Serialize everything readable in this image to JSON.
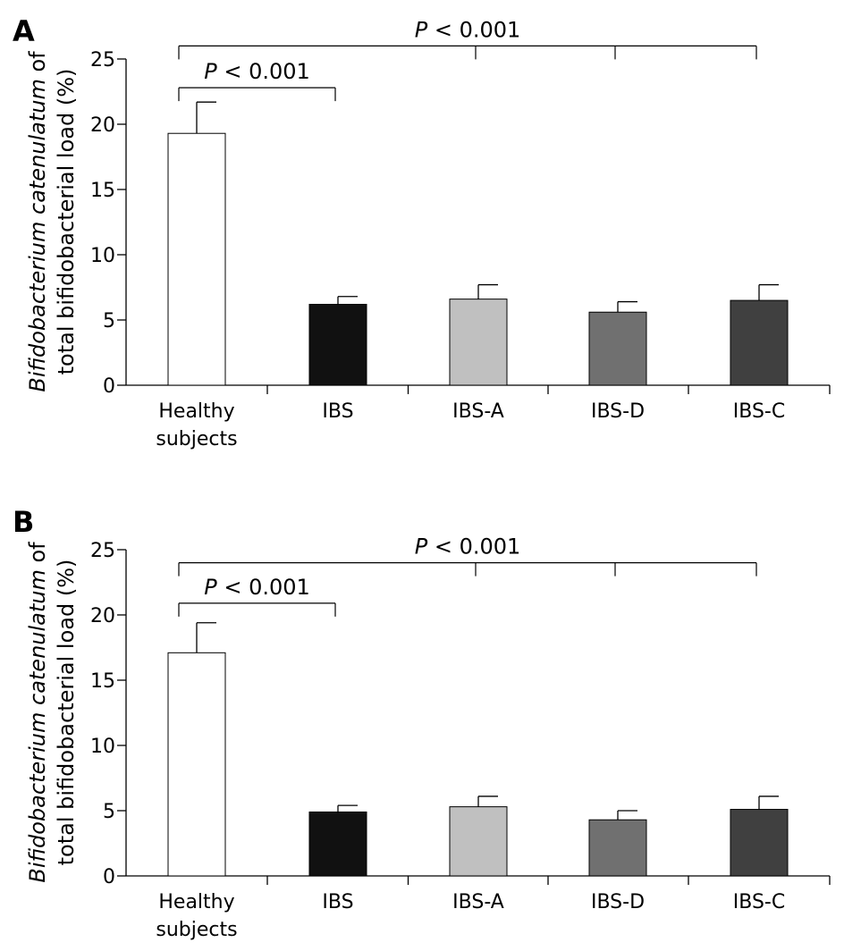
{
  "chart_data": [
    {
      "type": "bar",
      "panel": "A",
      "categories": [
        "Healthy subjects",
        "IBS",
        "IBS-A",
        "IBS-D",
        "IBS-C"
      ],
      "category_lines": [
        [
          "Healthy",
          "subjects"
        ],
        [
          "IBS"
        ],
        [
          "IBS-A"
        ],
        [
          "IBS-D"
        ],
        [
          "IBS-C"
        ]
      ],
      "values": [
        19.3,
        6.2,
        6.6,
        5.6,
        6.5
      ],
      "errors": [
        2.4,
        0.6,
        1.1,
        0.8,
        1.2
      ],
      "bar_colors": [
        "#ffffff",
        "#111111",
        "#c0c0c0",
        "#707070",
        "#404040"
      ],
      "ylabel_italic": "Bifidobacterium catenulatum",
      "ylabel_rest": " of",
      "ylabel_line2": "total bifidobacterial load (%)",
      "ylim": [
        0,
        25
      ],
      "yticks": [
        0,
        5,
        10,
        15,
        20,
        25
      ],
      "grid": false,
      "significance": [
        {
          "p_italic": "P",
          "text": " < 0.001",
          "from": 0,
          "to": [
            1
          ],
          "level": 22.8
        },
        {
          "p_italic": "P",
          "text": " < 0.001",
          "from": 0,
          "to": [
            2,
            3,
            4
          ],
          "level": 26.0
        }
      ]
    },
    {
      "type": "bar",
      "panel": "B",
      "categories": [
        "Healthy subjects",
        "IBS",
        "IBS-A",
        "IBS-D",
        "IBS-C"
      ],
      "category_lines": [
        [
          "Healthy",
          "subjects"
        ],
        [
          "IBS"
        ],
        [
          "IBS-A"
        ],
        [
          "IBS-D"
        ],
        [
          "IBS-C"
        ]
      ],
      "values": [
        17.1,
        4.9,
        5.3,
        4.3,
        5.1
      ],
      "errors": [
        2.3,
        0.5,
        0.8,
        0.7,
        1.0
      ],
      "bar_colors": [
        "#ffffff",
        "#111111",
        "#c0c0c0",
        "#707070",
        "#404040"
      ],
      "ylabel_italic": "Bifidobacterium catenulatum",
      "ylabel_rest": " of",
      "ylabel_line2": "total bifidobacterial load (%)",
      "ylim": [
        0,
        25
      ],
      "yticks": [
        0,
        5,
        10,
        15,
        20,
        25
      ],
      "grid": false,
      "significance": [
        {
          "p_italic": "P",
          "text": " < 0.001",
          "from": 0,
          "to": [
            1
          ],
          "level": 20.9
        },
        {
          "p_italic": "P",
          "text": " < 0.001",
          "from": 0,
          "to": [
            2,
            3,
            4
          ],
          "level": 24.0
        }
      ]
    }
  ]
}
